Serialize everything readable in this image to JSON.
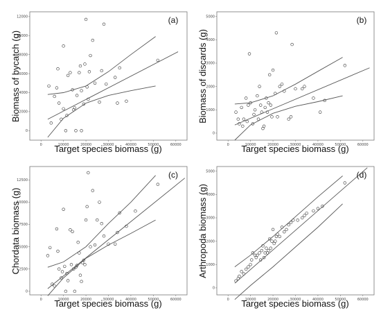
{
  "charts": [
    {
      "type": "scatter",
      "panel_label": "(a)",
      "xlabel": "Target species biomass (g)",
      "ylabel": "Biomass of bycatch (g)",
      "xlim": [
        -5000,
        65000
      ],
      "ylim": [
        -1000,
        12500
      ],
      "xticks": [
        "0",
        "10000",
        "20000",
        "30000",
        "40000",
        "50000",
        "60000"
      ],
      "yticks": [
        "0",
        "2000",
        "4000",
        "6000",
        "8000",
        "10000",
        "12000"
      ],
      "fit": {
        "x0": 3000,
        "y0": 1200,
        "x1": 61000,
        "y1": 8300
      },
      "ci_upper": {
        "x": [
          3000,
          10000,
          20000,
          30000,
          40000,
          51000
        ],
        "y": [
          3800,
          4000,
          4700,
          6200,
          8000,
          9900
        ]
      },
      "ci_lower": {
        "x": [
          3000,
          10000,
          20000,
          30000,
          40000,
          51000
        ],
        "y": [
          -700,
          1300,
          2900,
          3700,
          4200,
          4700
        ]
      },
      "x": [
        3500,
        4500,
        6000,
        7000,
        7500,
        8000,
        9000,
        10000,
        10000,
        11000,
        11500,
        12000,
        13000,
        14000,
        14500,
        15000,
        15500,
        16000,
        17000,
        17500,
        18000,
        18000,
        19000,
        19500,
        20000,
        20500,
        21000,
        21500,
        22000,
        23000,
        24000,
        26000,
        27000,
        28000,
        29000,
        33000,
        34000,
        35000,
        38000,
        52000
      ],
      "y": [
        4700,
        800,
        3600,
        4500,
        6500,
        2900,
        1200,
        2300,
        8900,
        0,
        1600,
        5800,
        6100,
        4300,
        2200,
        2400,
        0,
        3700,
        6100,
        6800,
        4200,
        0,
        2800,
        7000,
        11700,
        4600,
        3300,
        6200,
        7900,
        9500,
        5000,
        3000,
        6300,
        11200,
        4900,
        5600,
        2900,
        6600,
        3100,
        7400
      ]
    },
    {
      "type": "scatter",
      "panel_label": "(b)",
      "xlabel": "Target species biomass (g)",
      "ylabel": "Biomass of discards (g)",
      "xlim": [
        -5000,
        65000
      ],
      "ylim": [
        -300,
        5200
      ],
      "xticks": [
        "0",
        "10000",
        "20000",
        "30000",
        "40000",
        "50000",
        "60000"
      ],
      "yticks": [
        "0",
        "1000",
        "2000",
        "3000",
        "4000",
        "5000"
      ],
      "fit": {
        "x0": 3000,
        "y0": 350,
        "x1": 63000,
        "y1": 2800
      },
      "ci_upper": {
        "x": [
          3000,
          10000,
          20000,
          30000,
          40000,
          51000
        ],
        "y": [
          1250,
          1300,
          1600,
          2100,
          2650,
          3250
        ]
      },
      "ci_lower": {
        "x": [
          3000,
          10000,
          20000,
          30000,
          40000,
          51000
        ],
        "y": [
          -300,
          350,
          850,
          1150,
          1350,
          1600
        ]
      },
      "x": [
        3500,
        4500,
        5000,
        6000,
        6500,
        7000,
        8000,
        8500,
        9000,
        9500,
        10000,
        11000,
        11500,
        12000,
        13000,
        13500,
        14000,
        14500,
        15000,
        15500,
        16000,
        16500,
        17000,
        17500,
        18000,
        18500,
        19000,
        19500,
        20000,
        21000,
        21500,
        22000,
        23000,
        24000,
        25000,
        27000,
        28000,
        28500,
        30000,
        33000,
        34000,
        38000,
        41000,
        43000,
        52000
      ],
      "y": [
        900,
        600,
        400,
        1100,
        300,
        600,
        1500,
        500,
        1200,
        3400,
        1300,
        400,
        800,
        1000,
        1600,
        600,
        2000,
        1200,
        900,
        200,
        300,
        1100,
        1500,
        900,
        1300,
        2500,
        1200,
        700,
        2700,
        1700,
        4300,
        700,
        2000,
        2100,
        1800,
        600,
        700,
        3800,
        1900,
        1900,
        2000,
        1500,
        900,
        1400,
        2900
      ]
    },
    {
      "type": "scatter",
      "panel_label": "(c)",
      "xlabel": "Target species biomass (g)",
      "ylabel": "Chordata biomass (g)",
      "xlim": [
        -5000,
        65000
      ],
      "ylim": [
        -400,
        14000
      ],
      "xticks": [
        "0",
        "10000",
        "20000",
        "30000",
        "40000",
        "50000",
        "60000"
      ],
      "yticks": [
        "0",
        "2500",
        "5000",
        "7500",
        "10000",
        "12500"
      ],
      "fit": {
        "x0": 3000,
        "y0": 300,
        "x1": 64000,
        "y1": 12700
      },
      "ci_upper": {
        "x": [
          3000,
          10000,
          20000,
          30000,
          40000,
          51000
        ],
        "y": [
          2700,
          3300,
          5000,
          7600,
          10000,
          13000
        ]
      },
      "ci_lower": {
        "x": [
          3000,
          10000,
          20000,
          30000,
          40000,
          51000
        ],
        "y": [
          -500,
          1500,
          3700,
          5200,
          6500,
          8000
        ]
      },
      "x": [
        3000,
        4000,
        5000,
        6000,
        7000,
        7500,
        8000,
        9000,
        9500,
        10000,
        10500,
        11000,
        11500,
        12000,
        13000,
        13500,
        14000,
        14500,
        15000,
        15500,
        16000,
        16500,
        17000,
        17500,
        18000,
        18500,
        19000,
        19500,
        20000,
        20500,
        21000,
        22000,
        23000,
        24000,
        25000,
        26000,
        27000,
        28000,
        30000,
        33000,
        34000,
        35000,
        38000,
        42000,
        52000
      ],
      "y": [
        4000,
        4900,
        800,
        600,
        7000,
        4500,
        2500,
        1500,
        2200,
        9200,
        2800,
        0,
        2000,
        1200,
        6900,
        3000,
        6700,
        2500,
        0,
        2700,
        2900,
        5500,
        4300,
        1800,
        1100,
        3200,
        3500,
        3000,
        8000,
        9500,
        13300,
        5000,
        11300,
        5200,
        8000,
        10000,
        7600,
        6200,
        5300,
        5300,
        6600,
        8800,
        7300,
        9000,
        12000
      ]
    },
    {
      "type": "scatter",
      "panel_label": "(d)",
      "xlabel": "Target species biomass (g)",
      "ylabel": "Arthropoda biomass (g)",
      "xlim": [
        -5000,
        65000
      ],
      "ylim": [
        -300,
        5200
      ],
      "xticks": [
        "0",
        "10000",
        "20000",
        "30000",
        "40000",
        "50000",
        "60000"
      ],
      "yticks": [
        "0",
        "1000",
        "2000",
        "3000",
        "4000",
        "5000"
      ],
      "fit": {
        "x0": 3000,
        "y0": 200,
        "x1": 62000,
        "y1": 5150
      },
      "ci_upper": {
        "x": [
          3000,
          10000,
          20000,
          30000,
          40000,
          51000
        ],
        "y": [
          900,
          1400,
          2200,
          3050,
          3900,
          4800
        ]
      },
      "ci_lower": {
        "x": [
          3000,
          10000,
          20000,
          30000,
          40000,
          51000
        ],
        "y": [
          -500,
          100,
          900,
          1750,
          2600,
          3600
        ]
      },
      "x": [
        3500,
        4500,
        5000,
        6000,
        7000,
        8000,
        9000,
        10000,
        10500,
        11000,
        12000,
        12500,
        13000,
        14000,
        14500,
        15000,
        15500,
        16000,
        16500,
        17000,
        17500,
        18000,
        18500,
        19000,
        19500,
        20000,
        20500,
        21000,
        21500,
        22000,
        23000,
        24000,
        25000,
        26000,
        27000,
        28000,
        29000,
        31000,
        33000,
        34000,
        35000,
        38000,
        40000,
        42000,
        52000
      ],
      "y": [
        300,
        400,
        500,
        700,
        600,
        800,
        900,
        1000,
        1200,
        1500,
        1400,
        1300,
        1400,
        1500,
        1200,
        1600,
        1800,
        1300,
        1500,
        1700,
        1500,
        1600,
        2100,
        1700,
        2000,
        2500,
        1900,
        2000,
        2200,
        2300,
        2200,
        2600,
        2400,
        2500,
        2700,
        2800,
        2900,
        2900,
        3000,
        3100,
        3200,
        3300,
        3400,
        3500,
        4500
      ]
    }
  ]
}
